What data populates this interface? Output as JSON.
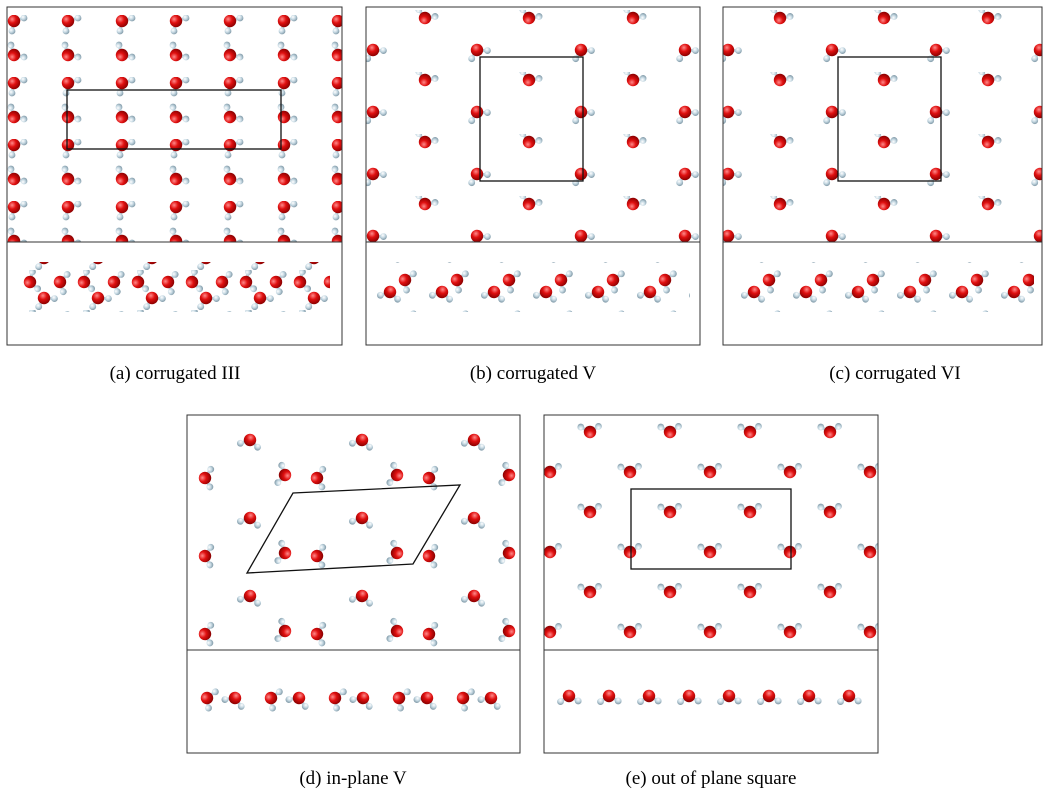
{
  "panels": [
    {
      "caption": "(a) corrugated III"
    },
    {
      "caption": "(b) corrugated V"
    },
    {
      "caption": "(c) corrugated VI"
    },
    {
      "caption": "(d) in-plane V"
    },
    {
      "caption": "(e) out of plane square"
    }
  ]
}
